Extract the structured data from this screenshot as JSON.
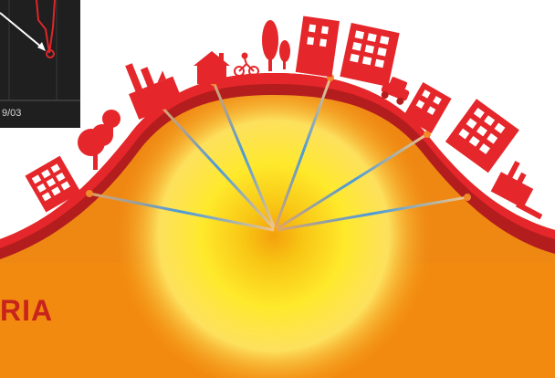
{
  "band_label": "RIA",
  "inset": {
    "axis_tick": "9/03",
    "line_color": "#e0252a",
    "background_color": "#1f1f1f"
  },
  "colors": {
    "ground_orange": "#ef8713",
    "crust_dark_red": "#b41d1e",
    "crust_red": "#e5262a",
    "sun_yellow": "#ffee2e",
    "building_red": "#e5262a",
    "ray_blue": "#4a9bd8"
  },
  "icons": [
    "building-icon",
    "tree-icon",
    "factory-icon",
    "house-icon",
    "cyclist-icon",
    "car-icon",
    "crane-icon"
  ]
}
